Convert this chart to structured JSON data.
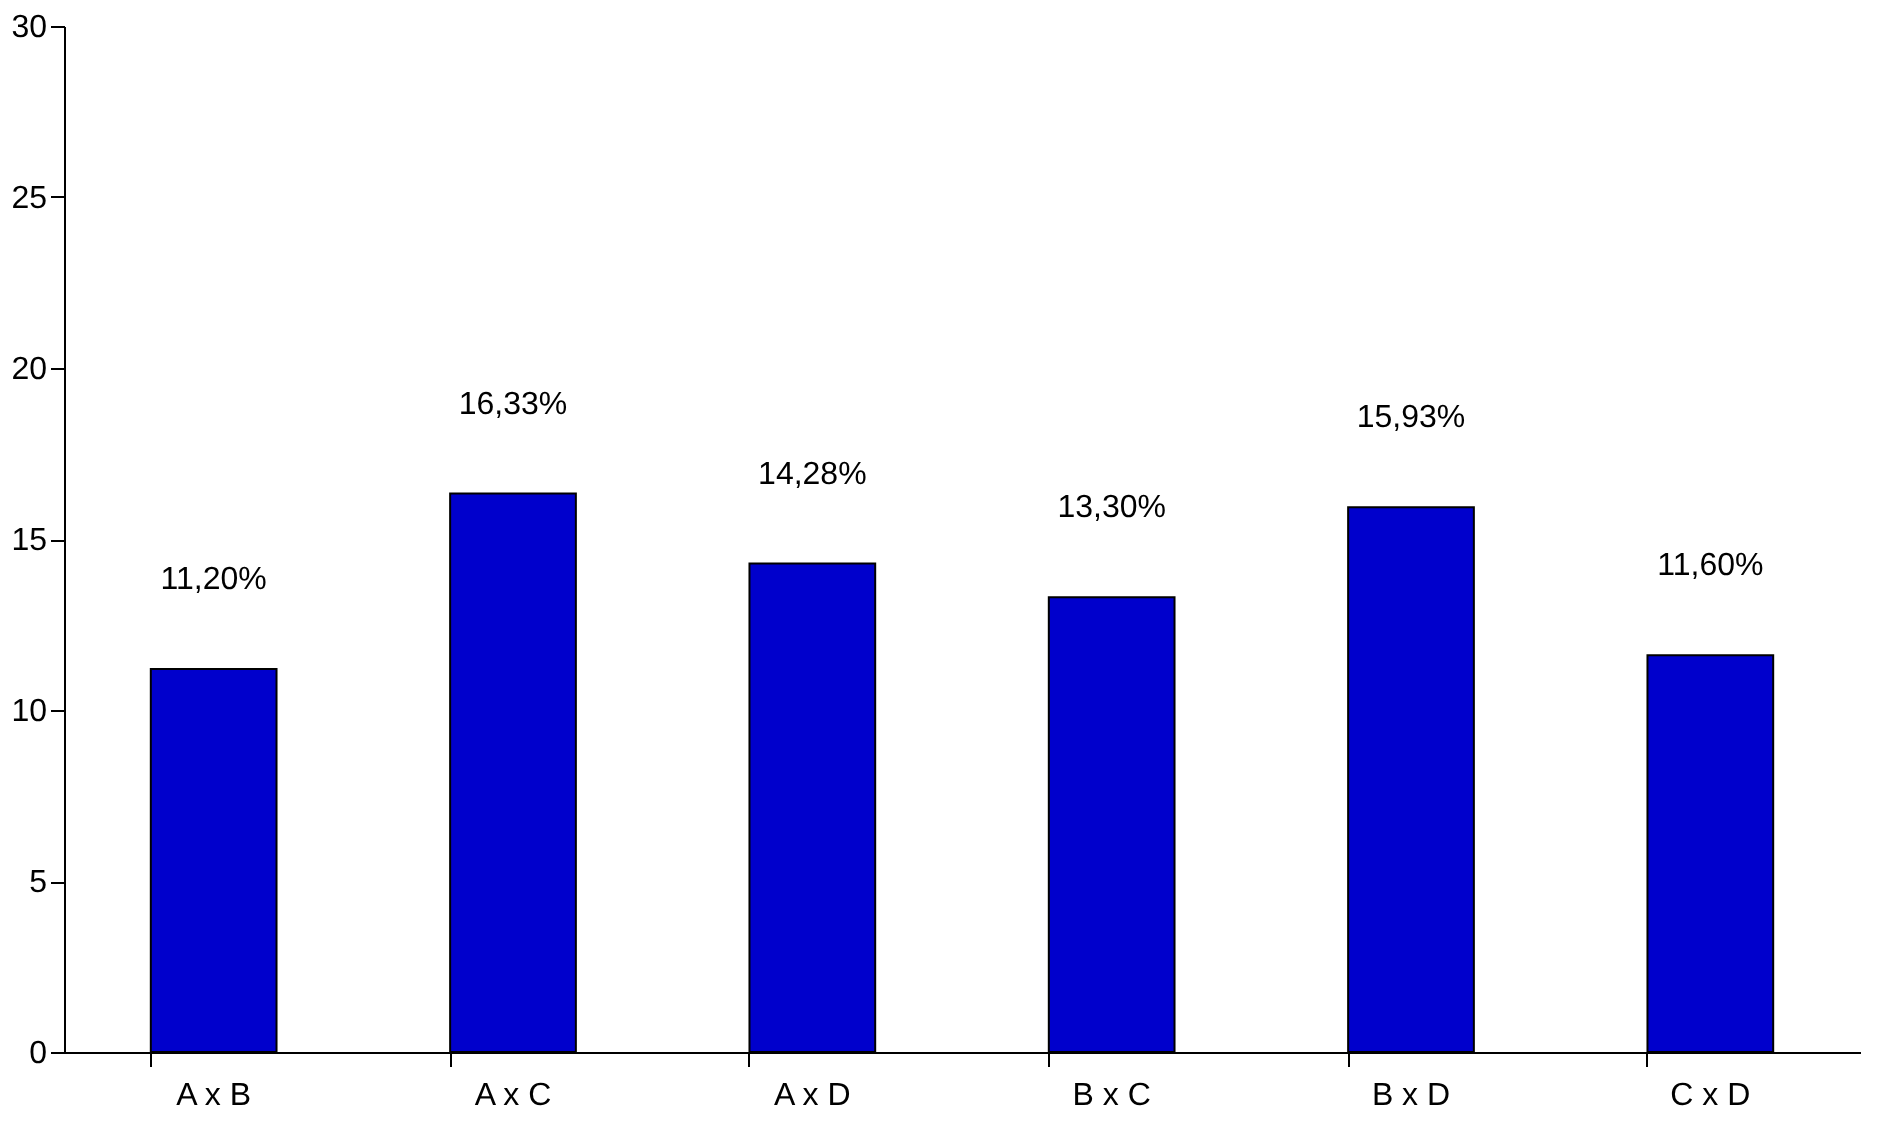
{
  "chart_data": {
    "type": "bar",
    "categories": [
      "A x B",
      "A x C",
      "A x D",
      "B x C",
      "B x D",
      "C x D"
    ],
    "values": [
      11.2,
      16.33,
      14.28,
      13.3,
      15.93,
      11.6
    ],
    "value_labels": [
      "11,20%",
      "16,33%",
      "14,28%",
      "13,30%",
      "15,93%",
      "11,60%"
    ],
    "color": "#0000cc",
    "ylim": [
      0,
      30
    ],
    "yticks": [
      0,
      5,
      10,
      15,
      20,
      25,
      30
    ],
    "grid": false
  }
}
